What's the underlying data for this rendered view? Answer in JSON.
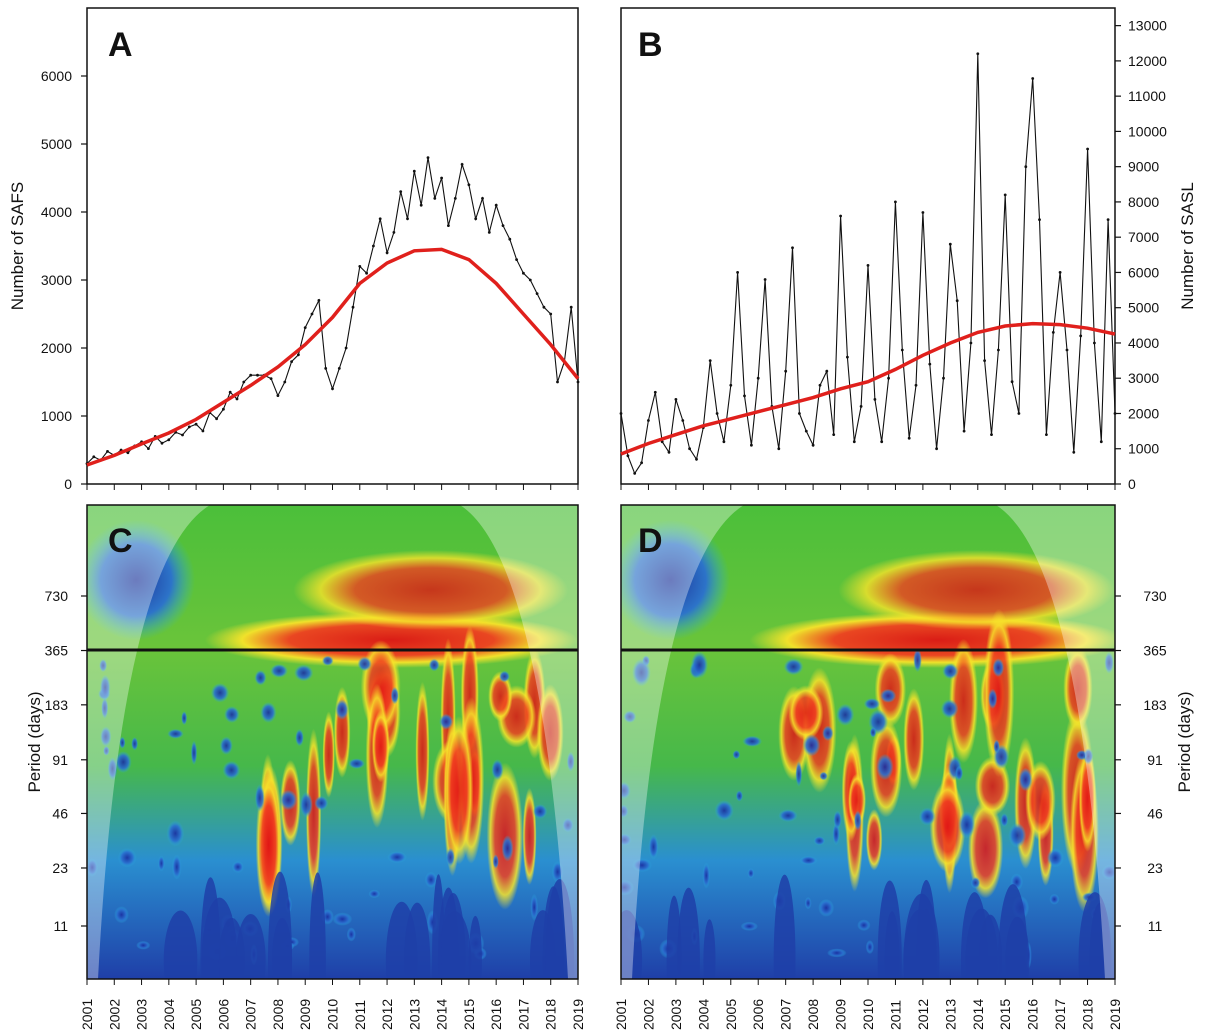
{
  "chart_data": [
    {
      "panel": "A",
      "type": "line",
      "ylabel": "Number of SAFS",
      "ylim": [
        0,
        7000
      ],
      "yticks": [
        0,
        1000,
        2000,
        3000,
        4000,
        5000,
        6000
      ],
      "xlim": [
        2001,
        2019
      ],
      "series": [
        {
          "kind": "observed",
          "color": "#111111",
          "x": [
            2001.0,
            2001.25,
            2001.5,
            2001.75,
            2002.0,
            2002.25,
            2002.5,
            2002.75,
            2003.0,
            2003.25,
            2003.5,
            2003.75,
            2004.0,
            2004.25,
            2004.5,
            2004.75,
            2005.0,
            2005.25,
            2005.5,
            2005.75,
            2006.0,
            2006.25,
            2006.5,
            2006.75,
            2007.0,
            2007.25,
            2007.5,
            2007.75,
            2008.0,
            2008.25,
            2008.5,
            2008.75,
            2009.0,
            2009.25,
            2009.5,
            2009.75,
            2010.0,
            2010.25,
            2010.5,
            2010.75,
            2011.0,
            2011.25,
            2011.5,
            2011.75,
            2012.0,
            2012.25,
            2012.5,
            2012.75,
            2013.0,
            2013.25,
            2013.5,
            2013.75,
            2014.0,
            2014.25,
            2014.5,
            2014.75,
            2015.0,
            2015.25,
            2015.5,
            2015.75,
            2016.0,
            2016.25,
            2016.5,
            2016.75,
            2017.0,
            2017.25,
            2017.5,
            2017.75,
            2018.0,
            2018.25,
            2018.5,
            2018.75,
            2019.0
          ],
          "y": [
            300,
            400,
            350,
            480,
            420,
            500,
            460,
            560,
            620,
            520,
            700,
            600,
            650,
            760,
            720,
            840,
            880,
            780,
            1050,
            960,
            1100,
            1350,
            1250,
            1500,
            1600,
            1600,
            1600,
            1550,
            1300,
            1500,
            1800,
            1900,
            2300,
            2500,
            2700,
            1700,
            1400,
            1700,
            2000,
            2600,
            3200,
            3100,
            3500,
            3900,
            3400,
            3700,
            4300,
            3900,
            4600,
            4100,
            4800,
            4200,
            4500,
            3800,
            4200,
            4700,
            4400,
            3900,
            4200,
            3700,
            4100,
            3800,
            3600,
            3300,
            3100,
            3000,
            2800,
            2600,
            2500,
            1500,
            1800,
            2600,
            1500
          ]
        },
        {
          "kind": "trend",
          "color": "#e0201c",
          "x": [
            2001,
            2002,
            2003,
            2004,
            2005,
            2006,
            2007,
            2008,
            2009,
            2010,
            2011,
            2012,
            2013,
            2014,
            2015,
            2016,
            2017,
            2018,
            2019
          ],
          "y": [
            280,
            420,
            590,
            750,
            950,
            1200,
            1450,
            1720,
            2050,
            2450,
            2950,
            3250,
            3430,
            3450,
            3300,
            2950,
            2500,
            2050,
            1550
          ]
        }
      ]
    },
    {
      "panel": "B",
      "type": "line",
      "ylabel": "Number of SASL",
      "ylim": [
        0,
        13500
      ],
      "yticks": [
        0,
        1000,
        2000,
        3000,
        4000,
        5000,
        6000,
        7000,
        8000,
        9000,
        10000,
        11000,
        12000,
        13000
      ],
      "xlim": [
        2001,
        2019
      ],
      "series": [
        {
          "kind": "observed",
          "color": "#111111",
          "x": [
            2001.0,
            2001.25,
            2001.5,
            2001.75,
            2002.0,
            2002.25,
            2002.5,
            2002.75,
            2003.0,
            2003.25,
            2003.5,
            2003.75,
            2004.0,
            2004.25,
            2004.5,
            2004.75,
            2005.0,
            2005.25,
            2005.5,
            2005.75,
            2006.0,
            2006.25,
            2006.5,
            2006.75,
            2007.0,
            2007.25,
            2007.5,
            2007.75,
            2008.0,
            2008.25,
            2008.5,
            2008.75,
            2009.0,
            2009.25,
            2009.5,
            2009.75,
            2010.0,
            2010.25,
            2010.5,
            2010.75,
            2011.0,
            2011.25,
            2011.5,
            2011.75,
            2012.0,
            2012.25,
            2012.5,
            2012.75,
            2013.0,
            2013.25,
            2013.5,
            2013.75,
            2014.0,
            2014.25,
            2014.5,
            2014.75,
            2015.0,
            2015.25,
            2015.5,
            2015.75,
            2016.0,
            2016.25,
            2016.5,
            2016.75,
            2017.0,
            2017.25,
            2017.5,
            2017.75,
            2018.0,
            2018.25,
            2018.5,
            2018.75,
            2019.0
          ],
          "y": [
            2000,
            800,
            300,
            600,
            1800,
            2600,
            1200,
            900,
            2400,
            1800,
            1000,
            700,
            1600,
            3500,
            2000,
            1200,
            2800,
            6000,
            2500,
            1100,
            3000,
            5800,
            2200,
            1000,
            3200,
            6700,
            2000,
            1500,
            1100,
            2800,
            3200,
            1400,
            7600,
            3600,
            1200,
            2200,
            6200,
            2400,
            1200,
            3000,
            8000,
            3800,
            1300,
            2800,
            7700,
            3400,
            1000,
            3000,
            6800,
            5200,
            1500,
            4000,
            12200,
            3500,
            1400,
            3800,
            8200,
            2900,
            2000,
            9000,
            11500,
            7500,
            1400,
            4300,
            6000,
            3800,
            900,
            4200,
            9500,
            4000,
            1200,
            7500,
            2000
          ]
        },
        {
          "kind": "trend",
          "color": "#e0201c",
          "x": [
            2001,
            2002,
            2003,
            2004,
            2005,
            2006,
            2007,
            2008,
            2009,
            2010,
            2011,
            2012,
            2013,
            2014,
            2015,
            2016,
            2017,
            2018,
            2019
          ],
          "y": [
            850,
            1150,
            1400,
            1650,
            1850,
            2050,
            2250,
            2450,
            2700,
            2900,
            3250,
            3650,
            4000,
            4300,
            4480,
            4550,
            4520,
            4420,
            4250
          ]
        }
      ]
    },
    {
      "panel": "C",
      "type": "heatmap",
      "ylabel": "Period (days)",
      "yticks": [
        11,
        23,
        46,
        91,
        183,
        365,
        730
      ],
      "reference_line": 365,
      "xlim": [
        2001,
        2019
      ]
    },
    {
      "panel": "D",
      "type": "heatmap",
      "ylabel": "Period (days)",
      "yticks": [
        11,
        23,
        46,
        91,
        183,
        365,
        730
      ],
      "reference_line": 365,
      "xlim": [
        2001,
        2019
      ]
    }
  ],
  "panels": {
    "a": {
      "letter": "A"
    },
    "b": {
      "letter": "B"
    },
    "c": {
      "letter": "C"
    },
    "d": {
      "letter": "D"
    }
  },
  "axis_titles": {
    "a_y": "Number of SAFS",
    "b_y": "Number of SASL",
    "cd_y": "Period (days)"
  },
  "years": [
    "2001",
    "2002",
    "2003",
    "2004",
    "2005",
    "2006",
    "2007",
    "2008",
    "2009",
    "2010",
    "2011",
    "2012",
    "2013",
    "2014",
    "2015",
    "2016",
    "2017",
    "2018",
    "2019"
  ],
  "period_ticks": [
    "730",
    "365",
    "183",
    "91",
    "46",
    "23",
    "11"
  ],
  "a_ticks": [
    "0",
    "1000",
    "2000",
    "3000",
    "4000",
    "5000",
    "6000"
  ],
  "b_ticks": [
    "0",
    "1000",
    "2000",
    "3000",
    "4000",
    "5000",
    "6000",
    "7000",
    "8000",
    "9000",
    "10000",
    "11000",
    "12000",
    "13000"
  ],
  "colors": {
    "observed": "#111111",
    "trend": "#e0201c",
    "power_low": "#1f3fa8",
    "power_high": "#e01414"
  }
}
